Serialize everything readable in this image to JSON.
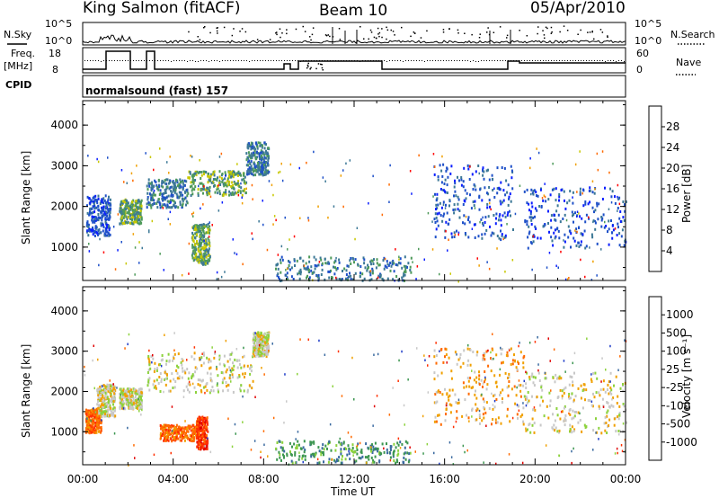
{
  "header": {
    "station": "King Salmon (fitACF)",
    "beam": "Beam 10",
    "date": "05/Apr/2010"
  },
  "strips": {
    "nsky_label": "N.Sky",
    "nsky_ticks": [
      "10^5",
      "10^0"
    ],
    "nsearch_label": "N.Search",
    "nsearch_ticks": [
      "10^5",
      "10^0"
    ],
    "freq_label_top": "Freq.",
    "freq_label_unit": "[MHz]",
    "freq_ticks": [
      "18",
      "8"
    ],
    "nave_label": "Nave",
    "nave_ticks": [
      "60",
      "0"
    ],
    "cpid_label": "CPID",
    "cpid_value": "normalsound (fast) 157"
  },
  "chart_data": [
    {
      "type": "heatmap",
      "name": "power-panel",
      "ylabel": "Slant Range [km]",
      "ylim": [
        180,
        4600
      ],
      "yticks": [
        1000,
        2000,
        3000,
        4000
      ],
      "xlim": [
        0,
        24
      ],
      "colorbar": {
        "label": "Power [dB]",
        "ticks": [
          "4",
          "8",
          "12",
          "16",
          "20",
          "24",
          "28"
        ],
        "colors": [
          "#0a1eff",
          "#1e50c8",
          "#3c7896",
          "#4e9a5a",
          "#c8c800",
          "#f0a000",
          "#ff6a00",
          "#ff0000"
        ]
      },
      "regions": [
        {
          "t0": 0.15,
          "t1": 1.2,
          "r0": 1300,
          "r1": 2300,
          "level": 1
        },
        {
          "t0": 1.6,
          "t1": 2.6,
          "r0": 1600,
          "r1": 2200,
          "level": 3
        },
        {
          "t0": 2.8,
          "t1": 4.6,
          "r0": 2000,
          "r1": 2700,
          "level": 2
        },
        {
          "t0": 4.6,
          "t1": 7.2,
          "r0": 2300,
          "r1": 2900,
          "level": 3
        },
        {
          "t0": 4.8,
          "t1": 5.6,
          "r0": 600,
          "r1": 1600,
          "level": 3
        },
        {
          "t0": 7.2,
          "t1": 8.2,
          "r0": 2800,
          "r1": 3600,
          "level": 2
        },
        {
          "t0": 8.5,
          "t1": 14.5,
          "r0": 200,
          "r1": 800,
          "level": 2
        },
        {
          "t0": 15.5,
          "t1": 19.0,
          "r0": 1200,
          "r1": 3100,
          "level": 1
        },
        {
          "t0": 19.5,
          "t1": 24.0,
          "r0": 1000,
          "r1": 2500,
          "level": 1
        }
      ]
    },
    {
      "type": "heatmap",
      "name": "velocity-panel",
      "ylabel": "Slant Range [km]",
      "ylim": [
        180,
        4600
      ],
      "yticks": [
        1000,
        2000,
        3000,
        4000
      ],
      "xlim": [
        0,
        24
      ],
      "xticks": [
        "00:00",
        "04:00",
        "08:00",
        "12:00",
        "16:00",
        "20:00",
        "00:00"
      ],
      "xlabel": "Time UT",
      "colorbar": {
        "label": "Velocity [m s⁻¹]",
        "ticks": [
          "1000",
          "500",
          "100",
          "25",
          "-25",
          "-100",
          "-500",
          "-1000"
        ],
        "colors": [
          "#1e3cc8",
          "#3a6aa0",
          "#3c9650",
          "#8cd23c",
          "#c8c8c8",
          "#f0a000",
          "#ff6a00",
          "#ff3000",
          "#e00000"
        ]
      },
      "regions": [
        {
          "t0": 0.1,
          "t1": 0.8,
          "r0": 1000,
          "r1": 1600,
          "level": 6
        },
        {
          "t0": 0.6,
          "t1": 1.4,
          "r0": 1400,
          "r1": 2200,
          "level": 4
        },
        {
          "t0": 1.6,
          "t1": 2.6,
          "r0": 1600,
          "r1": 2100,
          "level": 4
        },
        {
          "t0": 2.8,
          "t1": 7.5,
          "r0": 2000,
          "r1": 3000,
          "level": 4
        },
        {
          "t0": 3.4,
          "t1": 5.0,
          "r0": 800,
          "r1": 1200,
          "level": 6
        },
        {
          "t0": 5.0,
          "t1": 5.5,
          "r0": 600,
          "r1": 1400,
          "level": 7
        },
        {
          "t0": 7.5,
          "t1": 8.2,
          "r0": 2900,
          "r1": 3500,
          "level": 4
        },
        {
          "t0": 8.5,
          "t1": 14.5,
          "r0": 250,
          "r1": 800,
          "level": 2
        },
        {
          "t0": 15.5,
          "t1": 19.5,
          "r0": 1200,
          "r1": 3100,
          "level": 5
        },
        {
          "t0": 19.5,
          "t1": 24.0,
          "r0": 1000,
          "r1": 2500,
          "level": 4
        }
      ]
    }
  ]
}
